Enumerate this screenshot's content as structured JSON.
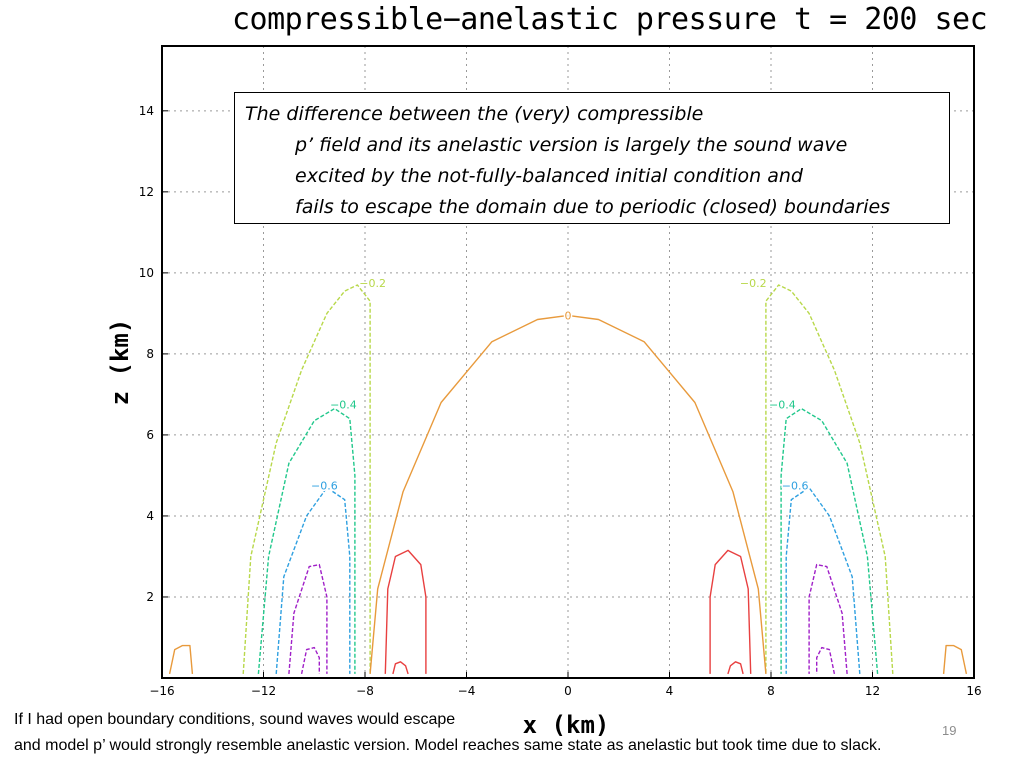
{
  "chart_data": {
    "type": "contour",
    "title": "compressible−anelastic pressure t = 200 sec",
    "xlabel": "x (km)",
    "ylabel": "z (km)",
    "xlim": [
      -16,
      16
    ],
    "ylim": [
      0,
      15.6
    ],
    "x_ticks": [
      -16,
      -12,
      -8,
      -4,
      0,
      4,
      8,
      12,
      16
    ],
    "x_tick_labels": [
      "−16",
      "−12",
      "−8",
      "−4",
      "0",
      "4",
      "8",
      "12",
      "16"
    ],
    "y_ticks": [
      2,
      4,
      6,
      8,
      10,
      12,
      14
    ],
    "y_tick_labels": [
      "2",
      "4",
      "6",
      "8",
      "10",
      "12",
      "14"
    ],
    "grid": true,
    "contours": [
      {
        "level": -0.2,
        "label": "−0.2",
        "color": "#b8d84a",
        "paths": [
          [
            [
              -12.8,
              0.1
            ],
            [
              -12.5,
              3.0
            ],
            [
              -11.5,
              5.8
            ],
            [
              -10.5,
              7.6
            ],
            [
              -9.5,
              9.0
            ],
            [
              -8.8,
              9.55
            ],
            [
              -8.3,
              9.7
            ],
            [
              -7.8,
              9.3
            ],
            [
              -7.8,
              0.1
            ]
          ],
          [
            [
              12.8,
              0.1
            ],
            [
              12.5,
              3.0
            ],
            [
              11.5,
              5.8
            ],
            [
              10.5,
              7.6
            ],
            [
              9.5,
              9.0
            ],
            [
              8.8,
              9.55
            ],
            [
              8.3,
              9.7
            ],
            [
              7.8,
              9.3
            ],
            [
              7.8,
              0.1
            ]
          ]
        ],
        "label_positions": [
          [
            -7.7,
            9.75
          ],
          [
            7.3,
            9.75
          ]
        ]
      },
      {
        "level": -0.4,
        "label": "−0.4",
        "color": "#22c88c",
        "paths": [
          [
            [
              -12.2,
              0.1
            ],
            [
              -11.8,
              3.0
            ],
            [
              -11.0,
              5.3
            ],
            [
              -10.0,
              6.35
            ],
            [
              -9.2,
              6.65
            ],
            [
              -8.6,
              6.4
            ],
            [
              -8.4,
              5.0
            ],
            [
              -8.4,
              0.1
            ]
          ],
          [
            [
              12.2,
              0.1
            ],
            [
              11.8,
              3.0
            ],
            [
              11.0,
              5.3
            ],
            [
              10.0,
              6.35
            ],
            [
              9.2,
              6.65
            ],
            [
              8.6,
              6.4
            ],
            [
              8.4,
              5.0
            ],
            [
              8.4,
              0.1
            ]
          ]
        ],
        "label_positions": [
          [
            -8.85,
            6.75
          ],
          [
            8.45,
            6.75
          ]
        ]
      },
      {
        "level": -0.6,
        "label": "−0.6",
        "color": "#2fa0e0",
        "paths": [
          [
            [
              -11.5,
              0.1
            ],
            [
              -11.2,
              2.5
            ],
            [
              -10.3,
              4.0
            ],
            [
              -9.5,
              4.7
            ],
            [
              -8.8,
              4.4
            ],
            [
              -8.6,
              3.0
            ],
            [
              -8.6,
              0.1
            ]
          ],
          [
            [
              11.5,
              0.1
            ],
            [
              11.2,
              2.5
            ],
            [
              10.3,
              4.0
            ],
            [
              9.5,
              4.7
            ],
            [
              8.8,
              4.4
            ],
            [
              8.6,
              3.0
            ],
            [
              8.6,
              0.1
            ]
          ]
        ],
        "label_positions": [
          [
            -9.6,
            4.75
          ],
          [
            8.95,
            4.75
          ]
        ]
      },
      {
        "level": -0.8,
        "label": "",
        "color": "#a020c8",
        "paths": [
          [
            [
              -11.0,
              0.1
            ],
            [
              -10.8,
              1.6
            ],
            [
              -10.2,
              2.75
            ],
            [
              -9.8,
              2.8
            ],
            [
              -9.5,
              2.0
            ],
            [
              -9.5,
              0.1
            ]
          ],
          [
            [
              11.0,
              0.1
            ],
            [
              10.8,
              1.6
            ],
            [
              10.2,
              2.75
            ],
            [
              9.8,
              2.8
            ],
            [
              9.5,
              2.0
            ],
            [
              9.5,
              0.1
            ]
          ],
          [
            [
              -10.5,
              0.1
            ],
            [
              -10.3,
              0.7
            ],
            [
              -10.0,
              0.75
            ],
            [
              -9.8,
              0.5
            ],
            [
              -9.8,
              0.1
            ]
          ],
          [
            [
              10.5,
              0.1
            ],
            [
              10.3,
              0.7
            ],
            [
              10.0,
              0.75
            ],
            [
              9.8,
              0.5
            ],
            [
              9.8,
              0.1
            ]
          ]
        ],
        "label_positions": []
      },
      {
        "level": 0,
        "label": "0",
        "color": "#e89a3c",
        "paths": [
          [
            [
              -7.8,
              0.1
            ],
            [
              -7.5,
              2.2
            ],
            [
              -6.5,
              4.6
            ],
            [
              -5.0,
              6.8
            ],
            [
              -3.0,
              8.3
            ],
            [
              -1.2,
              8.85
            ],
            [
              0,
              8.95
            ],
            [
              1.2,
              8.85
            ],
            [
              3.0,
              8.3
            ],
            [
              5.0,
              6.8
            ],
            [
              6.5,
              4.6
            ],
            [
              7.5,
              2.2
            ],
            [
              7.8,
              0.1
            ]
          ],
          [
            [
              -15.7,
              0.1
            ],
            [
              -15.5,
              0.7
            ],
            [
              -15.2,
              0.8
            ],
            [
              -14.9,
              0.8
            ],
            [
              -14.8,
              0.1
            ]
          ],
          [
            [
              15.7,
              0.1
            ],
            [
              15.5,
              0.7
            ],
            [
              15.2,
              0.8
            ],
            [
              14.9,
              0.8
            ],
            [
              14.8,
              0.1
            ]
          ]
        ],
        "label_positions": [
          [
            0,
            8.95
          ]
        ]
      },
      {
        "level": 0.2,
        "label": "",
        "color": "#e84040",
        "paths": [
          [
            [
              -7.2,
              0.1
            ],
            [
              -7.1,
              2.2
            ],
            [
              -6.8,
              3.0
            ],
            [
              -6.3,
              3.15
            ],
            [
              -5.8,
              2.8
            ],
            [
              -5.6,
              2.0
            ],
            [
              -5.6,
              0.1
            ]
          ],
          [
            [
              7.2,
              0.1
            ],
            [
              7.1,
              2.2
            ],
            [
              6.8,
              3.0
            ],
            [
              6.3,
              3.15
            ],
            [
              5.8,
              2.8
            ],
            [
              5.6,
              2.0
            ],
            [
              5.6,
              0.1
            ]
          ],
          [
            [
              -6.9,
              0.1
            ],
            [
              -6.8,
              0.35
            ],
            [
              -6.6,
              0.4
            ],
            [
              -6.4,
              0.3
            ],
            [
              -6.3,
              0.1
            ]
          ],
          [
            [
              6.9,
              0.1
            ],
            [
              6.8,
              0.35
            ],
            [
              6.6,
              0.4
            ],
            [
              6.4,
              0.3
            ],
            [
              6.3,
              0.1
            ]
          ]
        ],
        "label_positions": []
      }
    ]
  },
  "annotation": {
    "lines": [
      "The difference between the (very) compressible",
      "p’ field and its anelastic version is largely the sound wave",
      "excited by the not-fully-balanced initial condition and",
      "fails to escape the domain due to periodic (closed) boundaries"
    ]
  },
  "footer": {
    "line1": "If I had open boundary conditions, sound waves would escape",
    "line2": "and model p’ would strongly resemble anelastic version.  Model reaches same state as anelastic but took time due to slack.",
    "slide_number": "19"
  }
}
